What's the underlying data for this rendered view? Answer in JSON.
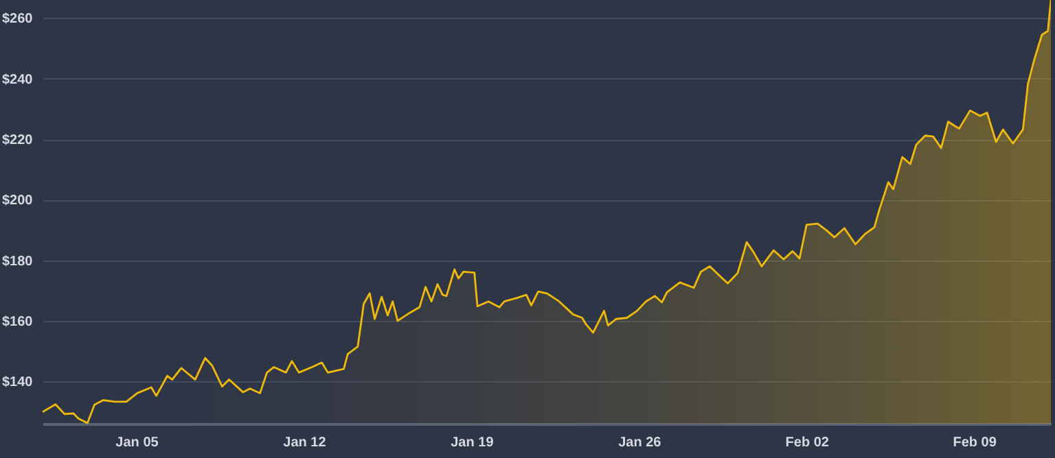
{
  "chart_data": {
    "type": "area",
    "x": [
      "--01-01T02:00",
      "--01-01T15:00",
      "--01-02T00:00",
      "--01-02T09:00",
      "--01-02T14:00",
      "--01-02T23:00",
      "--01-03T06:00",
      "--01-03T15:00",
      "--01-04T02:00",
      "--01-04T14:00",
      "--01-05T01:00",
      "--01-05T15:00",
      "--01-05T20:00",
      "--01-06T07:00",
      "--01-06T12:00",
      "--01-06T21:00",
      "--01-07T11:00",
      "--01-07T21:00",
      "--01-08T04:00",
      "--01-08T14:00",
      "--01-08T21:00",
      "--01-09T11:00",
      "--01-09T18:00",
      "--01-10T04:00",
      "--01-10T11:00",
      "--01-10T18:00",
      "--01-11T06:00",
      "--01-11T12:00",
      "--01-11T19:00",
      "--01-12T08:00",
      "--01-12T18:00",
      "--01-13T00:00",
      "--01-13T16:00",
      "--01-13T20:00",
      "--01-14T06:00",
      "--01-14T12:00",
      "--01-14T18:00",
      "--01-14T23:00",
      "--01-15T06:00",
      "--01-15T12:00",
      "--01-15T17:00",
      "--01-15T22:00",
      "--01-16T10:00",
      "--01-16T20:00",
      "--01-17T02:00",
      "--01-17T08:00",
      "--01-17T14:00",
      "--01-17T19:00",
      "--01-17T23:00",
      "--01-18T07:00",
      "--01-18T11:00",
      "--01-18T16:00",
      "--01-19T03:00",
      "--01-19T06:00",
      "--01-19T17:00",
      "--01-20T04:00",
      "--01-20T09:00",
      "--01-20T22:00",
      "--01-21T07:00",
      "--01-21T12:00",
      "--01-21T19:00",
      "--01-22T04:00",
      "--01-22T16:00",
      "--01-23T06:00",
      "--01-23T15:00",
      "--01-23T19:00",
      "--01-24T02:00",
      "--01-24T13:00",
      "--01-24T17:00",
      "--01-25T01:00",
      "--01-25T12:00",
      "--01-25T22:00",
      "--01-26T07:00",
      "--01-26T16:00",
      "--01-26T23:00",
      "--01-27T04:00",
      "--01-27T17:00",
      "--01-28T07:00",
      "--01-28T14:00",
      "--01-28T23:00",
      "--01-29T06:00",
      "--01-29T17:00",
      "--01-30T03:00",
      "--01-30T12:00",
      "--01-30T19:00",
      "--01-31T03:00",
      "--01-31T15:00",
      "--02-01T01:00",
      "--02-01T10:00",
      "--02-01T17:00",
      "--02-02T00:00",
      "--02-02T11:00",
      "--02-02T20:00",
      "--02-03T04:00",
      "--02-03T14:00",
      "--02-04T01:00",
      "--02-04T11:00",
      "--02-04T20:00",
      "--02-05T01:00",
      "--02-05T10:00",
      "--02-05T15:00",
      "--02-06T00:00",
      "--02-06T08:00",
      "--02-06T14:00",
      "--02-06T23:00",
      "--02-07T07:00",
      "--02-07T15:00",
      "--02-07T22:00",
      "--02-08T09:00",
      "--02-08T20:00",
      "--02-09T06:00",
      "--02-09T13:00",
      "--02-09T22:00",
      "--02-10T05:00",
      "--02-10T15:00",
      "--02-11T01:00",
      "--02-11T06:00",
      "--02-11T12:00",
      "--02-11T20:00",
      "--02-12T02:00",
      "--02-12T05:00"
    ],
    "series": [
      {
        "color": "#f0b90b",
        "values": [
          129.9,
          132.4,
          129.2,
          129.4,
          127.7,
          126.2,
          132.3,
          133.8,
          133.3,
          133.3,
          136.1,
          138.0,
          135.2,
          141.8,
          140.6,
          144.4,
          140.6,
          147.7,
          145.2,
          138.3,
          140.6,
          136.4,
          137.6,
          136.1,
          142.9,
          144.7,
          142.9,
          146.7,
          142.9,
          144.7,
          146.2,
          142.9,
          144.1,
          149.0,
          151.5,
          165.6,
          169.1,
          160.6,
          167.9,
          161.8,
          166.4,
          160.0,
          162.6,
          164.5,
          171.2,
          166.4,
          172.1,
          168.6,
          168.2,
          177.0,
          174.0,
          176.2,
          175.9,
          164.8,
          166.4,
          164.5,
          166.4,
          167.6,
          168.6,
          165.1,
          169.7,
          169.0,
          166.4,
          162.1,
          161.0,
          158.8,
          156.1,
          163.3,
          158.5,
          160.6,
          161.0,
          163.3,
          166.4,
          168.2,
          166.1,
          169.4,
          172.7,
          170.9,
          176.2,
          178.0,
          175.8,
          172.4,
          175.8,
          186.0,
          182.6,
          178.0,
          183.3,
          180.3,
          183.0,
          180.6,
          191.7,
          192.1,
          189.9,
          187.6,
          190.6,
          185.3,
          188.8,
          190.9,
          196.7,
          205.8,
          203.5,
          214.1,
          211.8,
          218.2,
          221.2,
          220.9,
          217.1,
          225.8,
          223.5,
          229.5,
          227.7,
          228.8,
          219.1,
          223.2,
          218.6,
          223.2,
          238.3,
          245.9,
          254.5,
          255.8,
          266.0
        ]
      }
    ],
    "xlim": [
      "--01-01T02:00",
      "--02-12T05:00"
    ],
    "xticks": [
      {
        "value": "--01-05",
        "label": "Jan 05"
      },
      {
        "value": "--01-12",
        "label": "Jan 12"
      },
      {
        "value": "--01-19",
        "label": "Jan 19"
      },
      {
        "value": "--01-26",
        "label": "Jan 26"
      },
      {
        "value": "--02-02",
        "label": "Feb 02"
      },
      {
        "value": "--02-09",
        "label": "Feb 09"
      }
    ],
    "ylim": [
      126,
      266
    ],
    "yticks": [
      {
        "value": 140,
        "label": "$140"
      },
      {
        "value": 160,
        "label": "$160"
      },
      {
        "value": 180,
        "label": "$180"
      },
      {
        "value": 200,
        "label": "$200"
      },
      {
        "value": 220,
        "label": "$220"
      },
      {
        "value": 240,
        "label": "$240"
      },
      {
        "value": 260,
        "label": "$260"
      }
    ],
    "grid": "y"
  }
}
